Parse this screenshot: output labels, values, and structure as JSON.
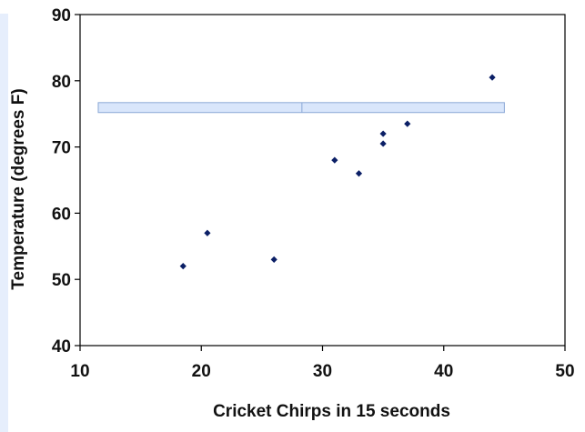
{
  "chart_data": {
    "type": "scatter",
    "title": "",
    "xlabel": "Cricket Chirps in 15 seconds",
    "ylabel": "Temperature (degrees F)",
    "xlim": [
      10,
      50
    ],
    "ylim": [
      40,
      90
    ],
    "xticks": [
      10,
      20,
      30,
      40,
      50
    ],
    "yticks": [
      40,
      50,
      60,
      70,
      80,
      90
    ],
    "grid": false,
    "legend": "none",
    "marker": "diamond",
    "marker_color": "#0b1f66",
    "series": [
      {
        "points": [
          {
            "x": 18.5,
            "y": 52
          },
          {
            "x": 20.5,
            "y": 57
          },
          {
            "x": 26,
            "y": 53
          },
          {
            "x": 31,
            "y": 68
          },
          {
            "x": 33,
            "y": 66
          },
          {
            "x": 35,
            "y": 70.5
          },
          {
            "x": 35,
            "y": 72
          },
          {
            "x": 37,
            "y": 73.5
          },
          {
            "x": 44,
            "y": 80.5
          }
        ]
      }
    ],
    "highlight_band": {
      "x_start": 11.5,
      "x_end": 45,
      "x_divider": 28.3,
      "y_low": 75.2,
      "y_high": 76.7,
      "fill": "#d9e6fb",
      "stroke": "#8aa8d6"
    }
  }
}
